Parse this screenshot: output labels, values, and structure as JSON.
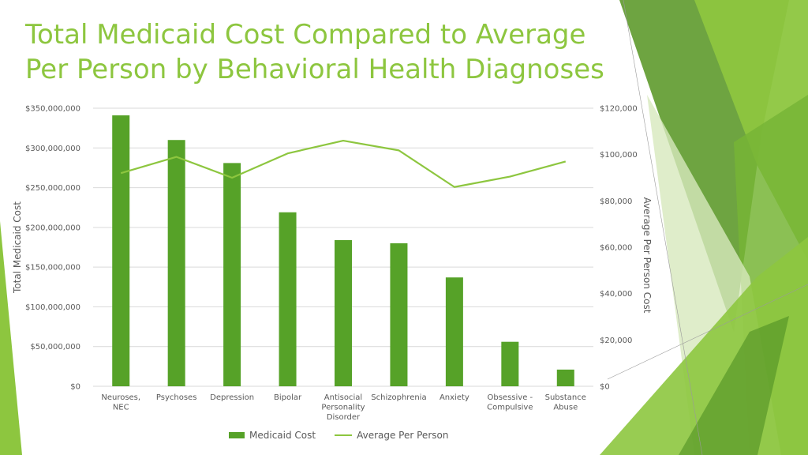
{
  "title_lines": [
    "Total Medicaid Cost Compared to Average",
    "Per Person by Behavioral Health Diagnoses"
  ],
  "colors": {
    "title": "#8dc63f",
    "bars": "#56a228",
    "line": "#8dc63f",
    "grid": "#d9d9d9"
  },
  "chart_data": {
    "type": "bar",
    "categories": [
      [
        "Neuroses,",
        "NEC"
      ],
      [
        "Psychoses"
      ],
      [
        "Depression"
      ],
      [
        "Bipolar"
      ],
      [
        "Antisocial",
        "Personality",
        "Disorder"
      ],
      [
        "Schizophrenia"
      ],
      [
        "Anxiety"
      ],
      [
        "Obsessive -",
        "Compulsive"
      ],
      [
        "Substance",
        "Abuse"
      ]
    ],
    "series": [
      {
        "name": "Medicaid Cost",
        "type": "bar",
        "axis": "left",
        "values": [
          341000000,
          310000000,
          281000000,
          219000000,
          184000000,
          180000000,
          137000000,
          56000000,
          21000000
        ]
      },
      {
        "name": "Average Per Person",
        "type": "line",
        "axis": "right",
        "values": [
          92000,
          99000,
          90000,
          100500,
          106000,
          101800,
          86000,
          90500,
          97000
        ]
      }
    ],
    "ylabel": "Total Medicaid Cost",
    "y2label": "Average Per Person Cost",
    "ylim": [
      0,
      350000000
    ],
    "y2lim": [
      0,
      120000
    ],
    "yticks": [
      "$0",
      "$50,000,000",
      "$100,000,000",
      "$150,000,000",
      "$200,000,000",
      "$250,000,000",
      "$300,000,000",
      "$350,000,000"
    ],
    "y2ticks": [
      "$0",
      "$20,000",
      "$40,000",
      "$60,000",
      "$80,000",
      "$100,000",
      "$120,000"
    ],
    "grid": true,
    "legend": "bottom"
  }
}
